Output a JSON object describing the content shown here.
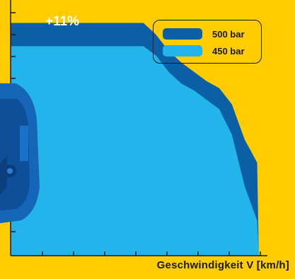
{
  "chart_data": {
    "type": "area",
    "xlabel": "Geschwindigkeit V [km/h]",
    "annotation": "+11%",
    "x": [
      0,
      0.3,
      0.6,
      1.0,
      1.4,
      1.8,
      2.2,
      2.6,
      3.0,
      3.4,
      3.8,
      4.2,
      4.6,
      5.0,
      5.4,
      5.8,
      6.2,
      6.6,
      7.0,
      7.4,
      7.8,
      7.85
    ],
    "series": [
      {
        "name": "500 bar",
        "color": "#0B5FA5",
        "values": [
          100,
          100,
          100,
          100,
          100,
          100,
          100,
          100,
          100,
          100,
          100,
          100,
          95,
          88,
          83,
          79,
          75,
          72,
          65,
          50,
          40,
          0
        ]
      },
      {
        "name": "450 bar",
        "color": "#22B4EA",
        "values": [
          90,
          90,
          90,
          90,
          90,
          90,
          90,
          90,
          90,
          90,
          90,
          90,
          86,
          79,
          74,
          71,
          67,
          63,
          52,
          30,
          15,
          0
        ]
      }
    ],
    "xlim": [
      0,
      7.9
    ],
    "ylim": [
      0,
      105
    ],
    "legend": "top-right",
    "grid": false
  }
}
